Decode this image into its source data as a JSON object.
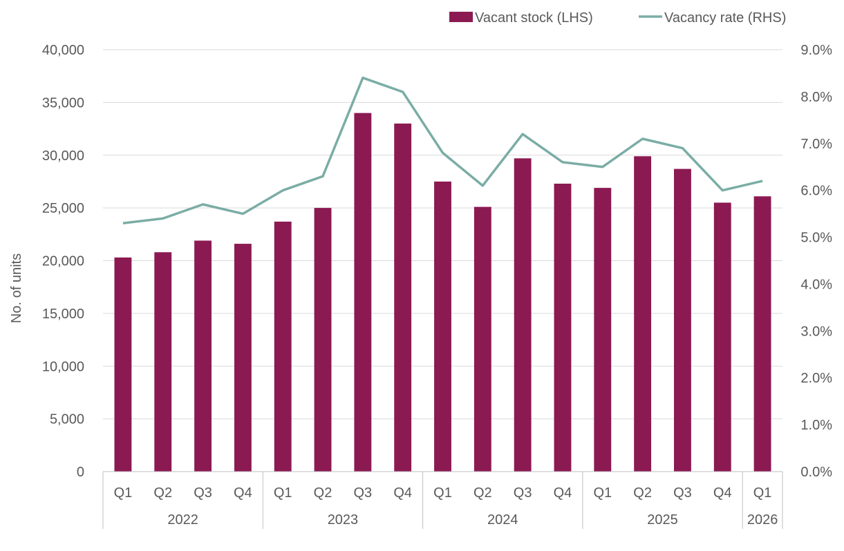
{
  "chart_data": {
    "type": "bar",
    "title": "",
    "xlabel": "",
    "ylabel": "No. of units",
    "y2label": "",
    "categories": [
      "Q1",
      "Q2",
      "Q3",
      "Q4",
      "Q1",
      "Q2",
      "Q3",
      "Q4",
      "Q1",
      "Q2",
      "Q3",
      "Q4",
      "Q1",
      "Q2",
      "Q3",
      "Q4",
      "Q1"
    ],
    "groups": [
      {
        "label": "2022",
        "count": 4
      },
      {
        "label": "2023",
        "count": 4
      },
      {
        "label": "2024",
        "count": 4
      },
      {
        "label": "2025",
        "count": 4
      },
      {
        "label": "2026",
        "count": 1
      }
    ],
    "series": [
      {
        "name": "Vacant stock (LHS)",
        "type": "bar",
        "axis": "left",
        "color": "#8B1A52",
        "values": [
          20300,
          20800,
          21900,
          21600,
          23700,
          25000,
          34000,
          33000,
          27500,
          25100,
          29700,
          27300,
          26900,
          29900,
          28700,
          25500,
          26100
        ]
      },
      {
        "name": "Vacancy rate (RHS)",
        "type": "line",
        "axis": "right",
        "color": "#7AADA5",
        "values": [
          5.3,
          5.4,
          5.7,
          5.5,
          6.0,
          6.3,
          8.4,
          8.1,
          6.8,
          6.1,
          7.2,
          6.6,
          6.5,
          7.1,
          6.9,
          6.0,
          6.2
        ]
      }
    ],
    "left_axis": {
      "ylim": [
        0,
        40000
      ],
      "ticks": [
        0,
        5000,
        10000,
        15000,
        20000,
        25000,
        30000,
        35000,
        40000
      ],
      "tick_labels": [
        "0",
        "5,000",
        "10,000",
        "15,000",
        "20,000",
        "25,000",
        "30,000",
        "35,000",
        "40,000"
      ]
    },
    "right_axis": {
      "ylim": [
        0,
        9
      ],
      "ticks": [
        0,
        1,
        2,
        3,
        4,
        5,
        6,
        7,
        8,
        9
      ],
      "tick_labels": [
        "0.0%",
        "1.0%",
        "2.0%",
        "3.0%",
        "4.0%",
        "5.0%",
        "6.0%",
        "7.0%",
        "8.0%",
        "9.0%"
      ]
    },
    "grid": true,
    "legend": "top-right"
  }
}
